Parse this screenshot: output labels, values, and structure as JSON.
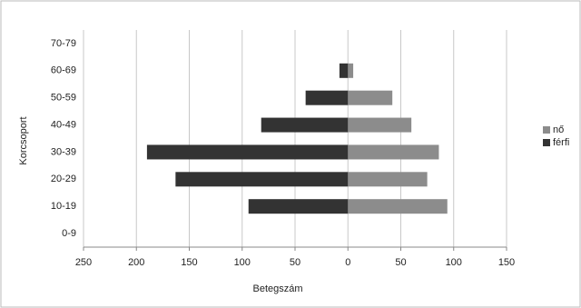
{
  "chart_data": {
    "type": "bar",
    "orientation": "horizontal",
    "stacked": false,
    "x_label": "Betegszám",
    "y_label": "Korcsoport",
    "categories": [
      "0-9",
      "10-19",
      "20-29",
      "30-39",
      "40-49",
      "50-59",
      "60-69",
      "70-79"
    ],
    "series": [
      {
        "name": "nő",
        "color": "#8c8c8c",
        "values": [
          0,
          94,
          75,
          86,
          60,
          42,
          5,
          0
        ]
      },
      {
        "name": "férfi",
        "color": "#333333",
        "values": [
          0,
          -94,
          -163,
          -190,
          -82,
          -40,
          -8,
          0
        ]
      }
    ],
    "xlim": [
      -250,
      150
    ],
    "xticks": [
      {
        "value": -250,
        "label": "250"
      },
      {
        "value": -200,
        "label": "200"
      },
      {
        "value": -150,
        "label": "150"
      },
      {
        "value": -100,
        "label": "100"
      },
      {
        "value": -50,
        "label": "50"
      },
      0,
      50,
      100,
      150
    ],
    "grid": true,
    "legend": "right"
  }
}
